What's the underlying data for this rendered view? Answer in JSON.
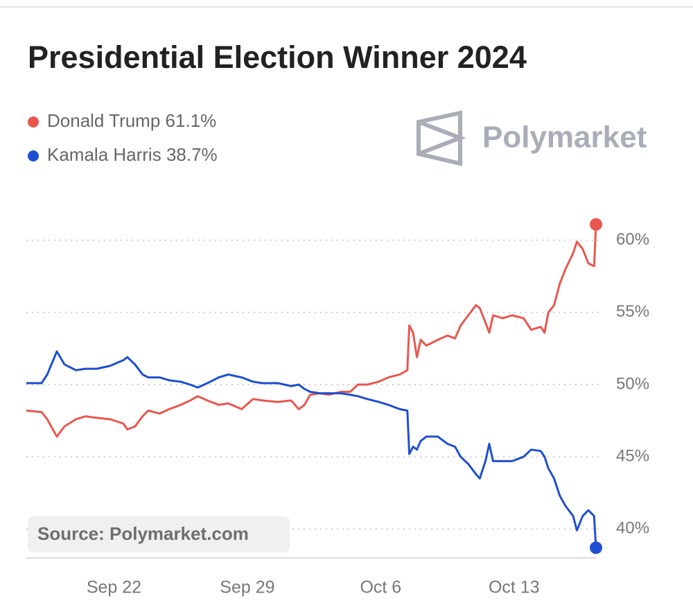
{
  "chart_data": {
    "type": "line",
    "title": "Presidential Election Winner 2024",
    "brand": "Polymarket",
    "source": "Source: Polymarket.com",
    "x": [
      17.4,
      18.2,
      18.5,
      19.0,
      19.4,
      20.0,
      20.5,
      21.1,
      21.8,
      22.5,
      22.7,
      23.1,
      23.5,
      23.8,
      24.4,
      24.9,
      25.5,
      26.0,
      26.4,
      26.9,
      27.5,
      28.0,
      28.7,
      29.3,
      29.8,
      30.6,
      31.3,
      31.7,
      32.0,
      32.3,
      32.8,
      33.3,
      33.9,
      34.4,
      34.8,
      35.3,
      35.9,
      36.4,
      37.0,
      37.4,
      37.5,
      37.7,
      37.9,
      38.1,
      38.4,
      39.0,
      39.5,
      39.9,
      40.2,
      40.6,
      41.0,
      41.2,
      41.5,
      41.7,
      41.9,
      42.4,
      42.9,
      43.5,
      43.9,
      44.4,
      44.6,
      44.8,
      45.1,
      45.4,
      45.7,
      46.1,
      46.3,
      46.6,
      46.9,
      47.2,
      47.3
    ],
    "series": [
      {
        "name": "Donald Trump",
        "legend_value": "61.1%",
        "color": "#e8574f",
        "values": [
          48.2,
          48.1,
          47.6,
          46.4,
          47.1,
          47.6,
          47.8,
          47.7,
          47.6,
          47.3,
          46.9,
          47.1,
          47.8,
          48.2,
          48.0,
          48.3,
          48.6,
          48.9,
          49.2,
          48.9,
          48.6,
          48.7,
          48.3,
          49.0,
          48.9,
          48.8,
          48.9,
          48.3,
          48.6,
          49.3,
          49.4,
          49.3,
          49.5,
          49.5,
          50.0,
          50.0,
          50.2,
          50.5,
          50.7,
          51.0,
          54.1,
          53.6,
          51.9,
          53.1,
          52.7,
          53.1,
          53.4,
          53.2,
          54.1,
          54.8,
          55.5,
          55.3,
          54.3,
          53.6,
          54.8,
          54.6,
          54.8,
          54.6,
          53.8,
          54.0,
          53.6,
          55.0,
          55.5,
          57.0,
          58.0,
          59.1,
          59.9,
          59.4,
          58.4,
          58.2,
          61.1
        ]
      },
      {
        "name": "Kamala Harris",
        "legend_value": "38.7%",
        "color": "#1f4fd1",
        "values": [
          50.1,
          50.1,
          50.7,
          52.3,
          51.4,
          51.0,
          51.1,
          51.1,
          51.3,
          51.7,
          51.9,
          51.4,
          50.7,
          50.5,
          50.5,
          50.3,
          50.2,
          50.0,
          49.8,
          50.1,
          50.5,
          50.7,
          50.5,
          50.2,
          50.1,
          50.1,
          49.9,
          50.0,
          49.7,
          49.5,
          49.4,
          49.4,
          49.4,
          49.3,
          49.2,
          49.0,
          48.8,
          48.6,
          48.3,
          48.2,
          45.2,
          45.7,
          45.5,
          46.1,
          46.4,
          46.4,
          45.9,
          45.7,
          45.0,
          44.5,
          43.8,
          43.5,
          44.7,
          45.9,
          44.7,
          44.7,
          44.7,
          45.0,
          45.5,
          45.4,
          45.0,
          44.2,
          43.5,
          42.3,
          41.6,
          40.9,
          39.9,
          40.9,
          41.3,
          40.9,
          38.7
        ]
      }
    ],
    "xlim": [
      17.4,
      47.3
    ],
    "xticks": [
      {
        "value": 22,
        "label": "Sep 22"
      },
      {
        "value": 29,
        "label": "Sep 29"
      },
      {
        "value": 36,
        "label": "Oct 6"
      },
      {
        "value": 43,
        "label": "Oct 13"
      }
    ],
    "ylim": [
      38,
      62
    ],
    "yticks": [
      {
        "value": 40,
        "label": "40%"
      },
      {
        "value": 45,
        "label": "45%"
      },
      {
        "value": 50,
        "label": "50%"
      },
      {
        "value": 55,
        "label": "55%"
      },
      {
        "value": 60,
        "label": "60%"
      }
    ],
    "grid": true
  }
}
